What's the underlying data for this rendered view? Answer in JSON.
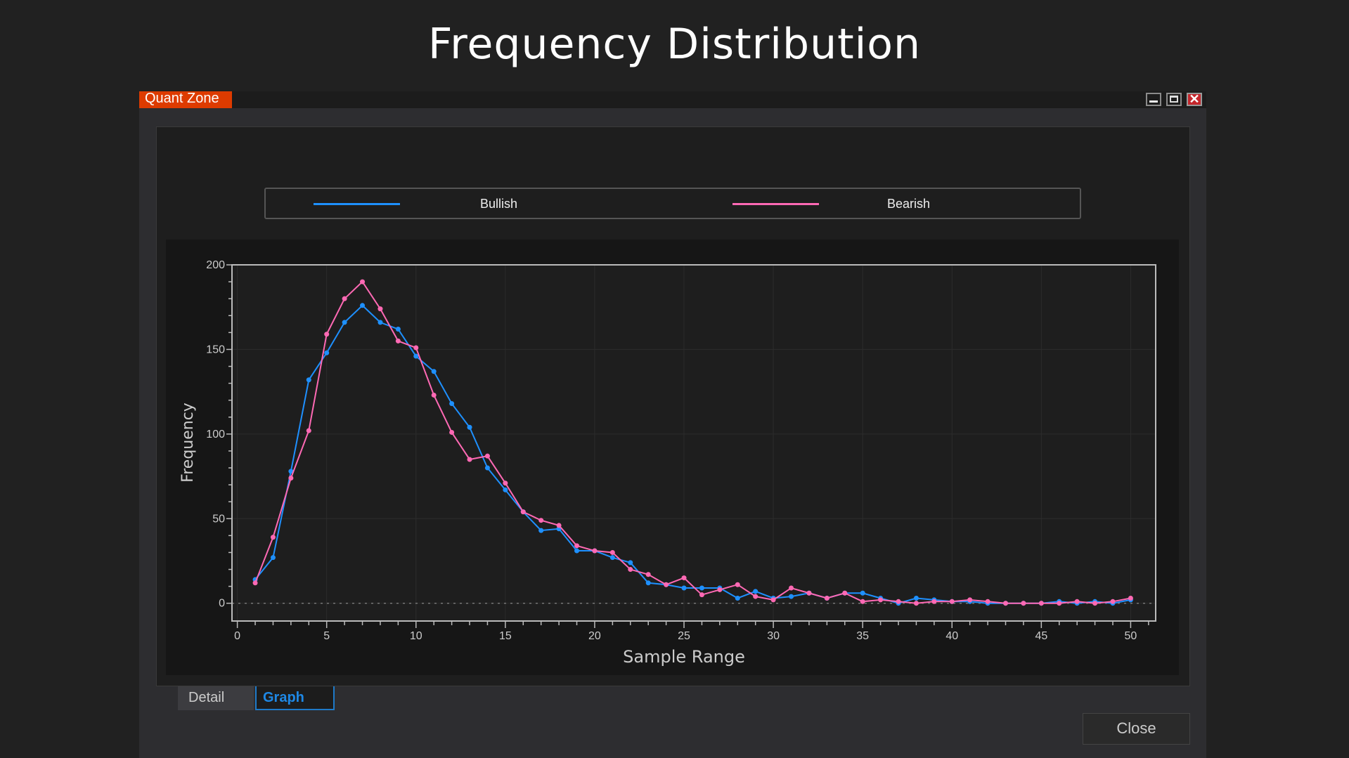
{
  "page_title": "Frequency Distribution",
  "window": {
    "app_name": "Quant Zone",
    "controls": [
      "minimize",
      "maximize",
      "close"
    ]
  },
  "tabs": [
    {
      "label": "Detail",
      "active": false
    },
    {
      "label": "Graph",
      "active": true
    }
  ],
  "close_button": "Close",
  "colors": {
    "bullish": "#1e90ff",
    "bearish": "#ff69b4",
    "accent": "#dd3b00"
  },
  "chart_data": {
    "type": "line",
    "title": "",
    "xlabel": "Sample Range",
    "ylabel": "Frequency",
    "xlim": [
      -0.3,
      51.4
    ],
    "ylim": [
      -10.5,
      200
    ],
    "xticks": [
      0,
      5,
      10,
      15,
      20,
      25,
      30,
      35,
      40,
      45,
      50
    ],
    "yticks": [
      0,
      50,
      100,
      150,
      200
    ],
    "grid": true,
    "legend_position": "top",
    "x": [
      1,
      2,
      3,
      4,
      5,
      6,
      7,
      8,
      9,
      10,
      11,
      12,
      13,
      14,
      15,
      16,
      17,
      18,
      19,
      20,
      21,
      22,
      23,
      24,
      25,
      26,
      27,
      28,
      29,
      30,
      31,
      32,
      33,
      34,
      35,
      36,
      37,
      38,
      39,
      40,
      41,
      42,
      43,
      44,
      45,
      46,
      47,
      48,
      49,
      50
    ],
    "series": [
      {
        "name": "Bullish",
        "color": "#1e90ff",
        "values": [
          14,
          27,
          78,
          132,
          148,
          166,
          176,
          166,
          162,
          146,
          137,
          118,
          104,
          80,
          67,
          54,
          43,
          44,
          31,
          31,
          27,
          24,
          12,
          11,
          9,
          9,
          9,
          3,
          7,
          3,
          4,
          6,
          3,
          6,
          6,
          3,
          0,
          3,
          2,
          1,
          1,
          0,
          0,
          0,
          0,
          1,
          0,
          1,
          0,
          2
        ]
      },
      {
        "name": "Bearish",
        "color": "#ff69b4",
        "values": [
          12,
          39,
          74,
          102,
          159,
          180,
          190,
          174,
          155,
          151,
          123,
          101,
          85,
          87,
          71,
          54,
          49,
          46,
          34,
          31,
          30,
          20,
          17,
          11,
          15,
          5,
          8,
          11,
          4,
          2,
          9,
          6,
          3,
          6,
          1,
          2,
          1,
          0,
          1,
          1,
          2,
          1,
          0,
          0,
          0,
          0,
          1,
          0,
          1,
          3
        ]
      }
    ]
  }
}
